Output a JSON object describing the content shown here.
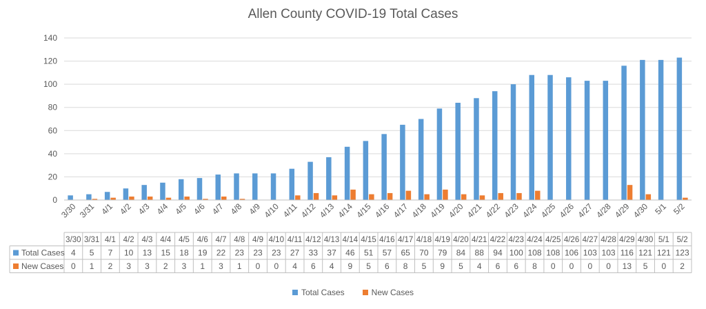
{
  "chart_data": {
    "type": "bar",
    "title": "Allen County COVID-19 Total Cases",
    "xlabel": "",
    "ylabel": "",
    "ylim": [
      0,
      140
    ],
    "yticks": [
      0,
      20,
      40,
      60,
      80,
      100,
      120,
      140
    ],
    "grid": true,
    "legend_position": "bottom",
    "data_table": true,
    "categories": [
      "3/30",
      "3/31",
      "4/1",
      "4/2",
      "4/3",
      "4/4",
      "4/5",
      "4/6",
      "4/7",
      "4/8",
      "4/9",
      "4/10",
      "4/11",
      "4/12",
      "4/13",
      "4/14",
      "4/15",
      "4/16",
      "4/17",
      "4/18",
      "4/19",
      "4/20",
      "4/21",
      "4/22",
      "4/23",
      "4/24",
      "4/25",
      "4/26",
      "4/27",
      "4/28",
      "4/29",
      "4/30",
      "5/1",
      "5/2"
    ],
    "series": [
      {
        "name": "Total Cases",
        "color": "#5b9bd5",
        "values": [
          4,
          5,
          7,
          10,
          13,
          15,
          18,
          19,
          22,
          23,
          23,
          23,
          27,
          33,
          37,
          46,
          51,
          57,
          65,
          70,
          79,
          84,
          88,
          94,
          100,
          108,
          108,
          106,
          103,
          103,
          116,
          121,
          121,
          123
        ]
      },
      {
        "name": "New Cases",
        "color": "#ed7d31",
        "values": [
          0,
          1,
          2,
          3,
          3,
          2,
          3,
          1,
          3,
          1,
          0,
          0,
          4,
          6,
          4,
          9,
          5,
          6,
          8,
          5,
          9,
          5,
          4,
          6,
          6,
          8,
          0,
          0,
          0,
          0,
          13,
          5,
          0,
          2
        ]
      }
    ]
  }
}
